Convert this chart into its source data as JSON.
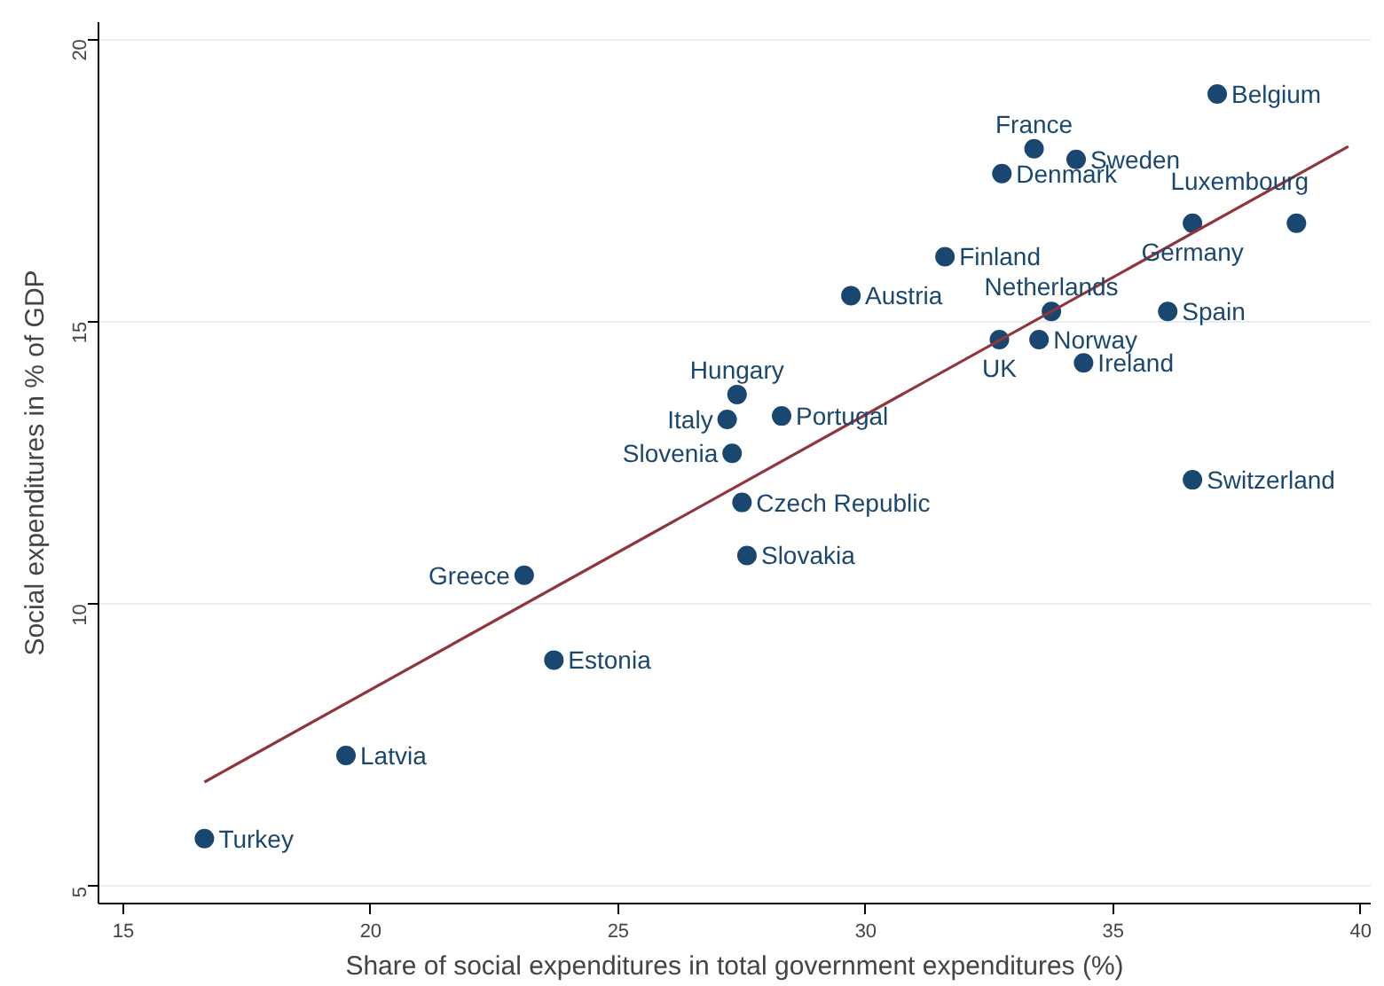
{
  "chart_data": {
    "type": "scatter",
    "xlabel": "Share of social expenditures in total government expenditures (%)",
    "ylabel": "Social expenditures in % of GDP",
    "xlim": [
      14.5,
      40.2
    ],
    "ylim": [
      4.7,
      20.3
    ],
    "xticks": [
      15,
      20,
      25,
      30,
      35,
      40
    ],
    "yticks": [
      5,
      10,
      15,
      20
    ],
    "grid": "y",
    "marker": "circle",
    "series": [
      {
        "color": "#1a476f",
        "x": [
          16.64,
          19.5,
          23.1,
          23.7,
          27.3,
          27.2,
          27.4,
          28.3,
          27.5,
          27.6,
          29.7,
          31.6,
          32.75,
          33.4,
          34.25,
          37.1,
          38.7,
          36.6,
          33.75,
          32.7,
          33.5,
          34.4,
          36.1,
          36.6
        ],
        "values": [
          5.85,
          7.32,
          10.51,
          9.01,
          12.67,
          13.27,
          13.71,
          13.33,
          11.8,
          10.86,
          15.46,
          16.15,
          17.62,
          18.06,
          17.87,
          19.03,
          16.74,
          16.74,
          15.18,
          14.68,
          14.68,
          14.27,
          15.18,
          12.2
        ]
      },
      {
        "type": "line",
        "color": "#90353b",
        "marker": "none",
        "x": [
          16.64,
          39.75
        ],
        "values": [
          6.85,
          18.1
        ]
      }
    ],
    "annotations": [
      {
        "text": "Turkey",
        "x": 16.64,
        "y": 5.85
      },
      {
        "text": "Latvia",
        "x": 19.5,
        "y": 7.32
      },
      {
        "text": "Greece",
        "x": 23.1,
        "y": 10.51
      },
      {
        "text": "Estonia",
        "x": 23.7,
        "y": 9.01
      },
      {
        "text": "Slovenia",
        "x": 27.3,
        "y": 12.67
      },
      {
        "text": "Italy",
        "x": 27.2,
        "y": 13.27
      },
      {
        "text": "Hungary",
        "x": 27.4,
        "y": 13.71
      },
      {
        "text": "Portugal",
        "x": 28.3,
        "y": 13.33
      },
      {
        "text": "Czech Republic",
        "x": 27.5,
        "y": 11.8
      },
      {
        "text": "Slovakia",
        "x": 27.6,
        "y": 10.86
      },
      {
        "text": "Austria",
        "x": 29.7,
        "y": 15.46
      },
      {
        "text": "Finland",
        "x": 31.6,
        "y": 16.15
      },
      {
        "text": "Denmark",
        "x": 32.75,
        "y": 17.62
      },
      {
        "text": "France",
        "x": 33.4,
        "y": 18.06
      },
      {
        "text": "Sweden",
        "x": 34.25,
        "y": 17.87
      },
      {
        "text": "Belgium",
        "x": 37.1,
        "y": 19.03
      },
      {
        "text": "Luxembourg",
        "x": 38.7,
        "y": 16.74
      },
      {
        "text": "Germany",
        "x": 36.6,
        "y": 16.74
      },
      {
        "text": "Netherlands",
        "x": 33.75,
        "y": 15.18
      },
      {
        "text": "UK",
        "x": 32.7,
        "y": 14.68
      },
      {
        "text": "Norway",
        "x": 33.5,
        "y": 14.68
      },
      {
        "text": "Ireland",
        "x": 34.4,
        "y": 14.27
      },
      {
        "text": "Spain",
        "x": 36.1,
        "y": 15.18
      },
      {
        "text": "Switzerland",
        "x": 36.6,
        "y": 12.2
      }
    ]
  }
}
